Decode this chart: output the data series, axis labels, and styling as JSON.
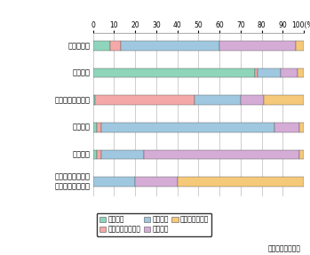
{
  "categories": [
    "全世界市場",
    "日本市場",
    "アジア太平洋市場",
    "北米市場",
    "西欧市場",
    "中東・アフリカ・\n東欧・中南米市場"
  ],
  "series_order": [
    "日本企業",
    "アジア太平洋企業",
    "北米企業",
    "西欧企業",
    "その他地域企業"
  ],
  "series": {
    "日本企業": [
      8,
      77,
      1,
      2,
      2,
      0
    ],
    "アジア太平洋企業": [
      5,
      1,
      47,
      2,
      2,
      0
    ],
    "北米企業": [
      47,
      11,
      22,
      82,
      20,
      20
    ],
    "西欧企業": [
      36,
      8,
      11,
      12,
      74,
      20
    ],
    "その他地域企業": [
      4,
      3,
      19,
      2,
      2,
      60
    ]
  },
  "colors": {
    "日本企業": "#8fd5bb",
    "アジア太平洋企業": "#f4a9a8",
    "北米企業": "#9fc8e0",
    "西欧企業": "#d5acd5",
    "その他地域企業": "#f5c97a"
  },
  "xlim": [
    0,
    100
  ],
  "xticks": [
    0,
    10,
    20,
    30,
    40,
    50,
    60,
    70,
    80,
    90,
    100
  ],
  "source_note": "出典は付注６参照",
  "bar_height": 0.45,
  "bg_color": "#ffffff",
  "grid_color": "#bbbbbb",
  "y_positions": [
    0,
    1.3,
    2.6,
    3.9,
    5.2,
    6.5
  ]
}
